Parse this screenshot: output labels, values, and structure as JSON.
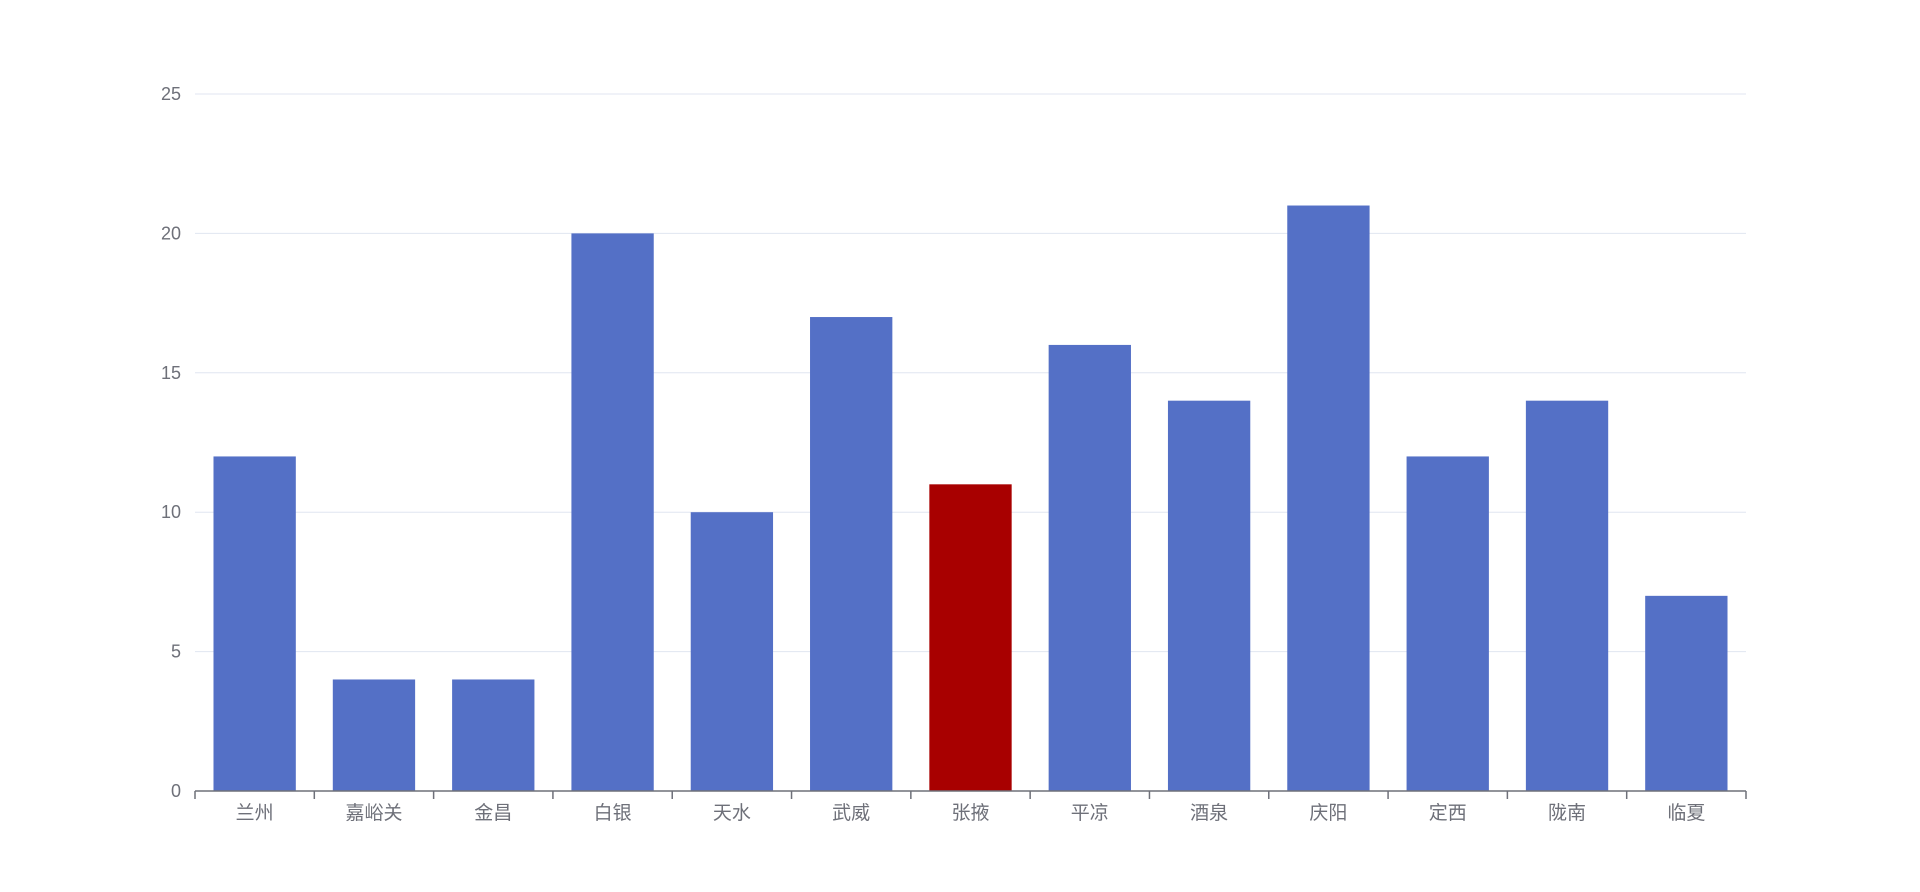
{
  "chart_data": {
    "type": "bar",
    "categories": [
      "兰州",
      "嘉峪关",
      "金昌",
      "白银",
      "天水",
      "武威",
      "张掖",
      "平凉",
      "酒泉",
      "庆阳",
      "定西",
      "陇南",
      "临夏"
    ],
    "values": [
      12,
      4,
      4,
      20,
      10,
      17,
      11,
      16,
      14,
      21,
      12,
      14,
      7
    ],
    "ylim": [
      0,
      25
    ],
    "yticks": [
      0,
      5,
      10,
      15,
      20,
      25
    ],
    "grid": true,
    "colors": {
      "bar": "#5470C6",
      "highlight": "#A80000",
      "axis": "#6E7079",
      "grid": "#E0E6F1"
    },
    "highlight_category": "张掖"
  }
}
